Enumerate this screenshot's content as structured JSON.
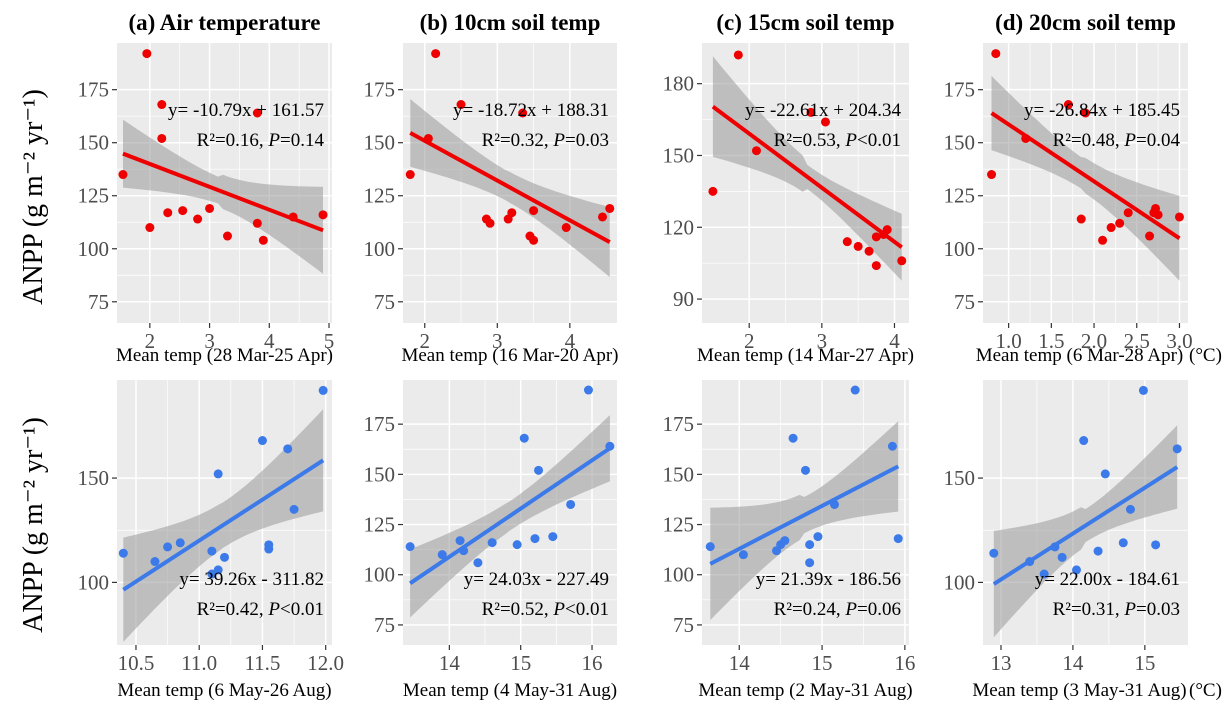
{
  "y_axis_label": "ANPP (g m⁻² yr⁻¹)",
  "unit_suffix": "(°C)",
  "colors": {
    "spring": "#ee0000",
    "summer": "#3b7ae8",
    "panel_bg": "#ebebeb",
    "grid": "#ffffff",
    "band": "#999999"
  },
  "chart_data": [
    {
      "type": "scatter",
      "title": "(a) Air temperature",
      "xlabel": "Mean temp (28 Mar-25 Apr)",
      "season": "spring",
      "xlim": [
        1.45,
        5.05
      ],
      "ylim": [
        65,
        197
      ],
      "xticks": [
        2,
        3,
        4,
        5
      ],
      "xtick_labels": [
        "2",
        "3",
        "4",
        "5"
      ],
      "yticks": [
        75,
        100,
        125,
        150,
        175
      ],
      "points": [
        [
          1.55,
          135
        ],
        [
          1.95,
          192
        ],
        [
          2.0,
          110
        ],
        [
          2.2,
          152
        ],
        [
          2.2,
          168
        ],
        [
          2.3,
          117
        ],
        [
          2.55,
          118
        ],
        [
          2.8,
          114
        ],
        [
          3.0,
          119
        ],
        [
          3.3,
          106
        ],
        [
          3.8,
          164
        ],
        [
          3.8,
          112
        ],
        [
          3.9,
          104
        ],
        [
          4.4,
          115
        ],
        [
          4.9,
          116
        ]
      ],
      "fit": {
        "slope": -10.79,
        "intercept": 161.57,
        "x_range": [
          1.55,
          4.9
        ]
      },
      "band": {
        "upper": [
          161,
          130
        ],
        "lower": [
          129,
          89
        ]
      },
      "equation": "y= -10.79x + 161.57",
      "r2_label": "R²=0.16, ",
      "p_italic": "P",
      "p_value": "=0.14"
    },
    {
      "type": "scatter",
      "title": "(b) 10cm soil temp",
      "xlabel": "Mean temp (16 Mar-20 Apr)",
      "season": "spring",
      "xlim": [
        1.7,
        4.65
      ],
      "ylim": [
        65,
        197
      ],
      "xticks": [
        2,
        3,
        4
      ],
      "xtick_labels": [
        "2",
        "3",
        "4"
      ],
      "yticks": [
        75,
        100,
        125,
        150,
        175
      ],
      "points": [
        [
          1.8,
          135
        ],
        [
          2.05,
          152
        ],
        [
          2.15,
          192
        ],
        [
          2.5,
          168
        ],
        [
          2.85,
          114
        ],
        [
          2.9,
          112
        ],
        [
          3.15,
          114
        ],
        [
          3.2,
          117
        ],
        [
          3.35,
          164
        ],
        [
          3.45,
          106
        ],
        [
          3.5,
          104
        ],
        [
          3.5,
          118
        ],
        [
          3.95,
          110
        ],
        [
          4.45,
          115
        ],
        [
          4.55,
          119
        ]
      ],
      "fit": {
        "slope": -18.72,
        "intercept": 188.31,
        "x_range": [
          1.8,
          4.55
        ]
      },
      "band": {
        "upper": [
          170,
          120
        ],
        "lower": [
          138,
          87
        ]
      },
      "equation": "y= -18.72x + 188.31",
      "r2_label": "R²=0.32, ",
      "p_italic": "P",
      "p_value": "=0.03"
    },
    {
      "type": "scatter",
      "title": "(c) 15cm soil temp",
      "xlabel": "Mean temp (14 Mar-27 Apr)",
      "season": "spring",
      "xlim": [
        1.35,
        4.2
      ],
      "ylim": [
        80,
        197
      ],
      "xticks": [
        2,
        3,
        4
      ],
      "xtick_labels": [
        "2",
        "3",
        "4"
      ],
      "yticks": [
        90,
        120,
        150,
        180
      ],
      "points": [
        [
          1.5,
          135
        ],
        [
          1.85,
          192
        ],
        [
          2.1,
          152
        ],
        [
          2.85,
          168
        ],
        [
          3.05,
          164
        ],
        [
          3.35,
          114
        ],
        [
          3.5,
          112
        ],
        [
          3.65,
          110
        ],
        [
          3.75,
          104
        ],
        [
          3.75,
          116
        ],
        [
          3.85,
          117
        ],
        [
          3.9,
          119
        ],
        [
          4.1,
          106
        ]
      ],
      "fit": {
        "slope": -22.61,
        "intercept": 204.34,
        "x_range": [
          1.5,
          4.1
        ]
      },
      "band": {
        "upper": [
          192,
          122
        ],
        "lower": [
          150,
          94
        ]
      },
      "equation": "y= -22.61x + 204.34",
      "r2_label": "R²=0.53, ",
      "p_italic": "P",
      "p_value": "<0.01"
    },
    {
      "type": "scatter",
      "title": "(d) 20cm soil temp",
      "xlabel": "Mean temp (6 Mar-28 Apr)",
      "season": "spring",
      "xlim": [
        0.7,
        3.1
      ],
      "ylim": [
        65,
        197
      ],
      "xticks": [
        1.0,
        1.5,
        2.0,
        2.5,
        3.0
      ],
      "xtick_labels": [
        "1.0",
        "1.5",
        "2.0",
        "2.5",
        "3.0"
      ],
      "yticks": [
        75,
        100,
        125,
        150,
        175
      ],
      "points": [
        [
          0.8,
          135
        ],
        [
          0.85,
          192
        ],
        [
          1.2,
          152
        ],
        [
          1.7,
          168
        ],
        [
          1.85,
          114
        ],
        [
          1.9,
          164
        ],
        [
          2.1,
          104
        ],
        [
          2.2,
          110
        ],
        [
          2.3,
          112
        ],
        [
          2.4,
          117
        ],
        [
          2.65,
          106
        ],
        [
          2.7,
          117
        ],
        [
          2.72,
          119
        ],
        [
          2.75,
          116
        ],
        [
          3.0,
          115
        ]
      ],
      "fit": {
        "slope": -26.84,
        "intercept": 185.45,
        "x_range": [
          0.8,
          3.0
        ]
      },
      "band": {
        "upper": [
          181,
          124
        ],
        "lower": [
          146,
          84
        ]
      },
      "equation": "y= -26.84x + 185.45",
      "r2_label": "R²=0.48, ",
      "p_italic": "P",
      "p_value": "=0.04"
    },
    {
      "type": "scatter",
      "title": "",
      "xlabel": "Mean temp (6 May-26 Aug)",
      "season": "summer",
      "xlim": [
        10.35,
        12.05
      ],
      "ylim": [
        70,
        197
      ],
      "xticks": [
        10.5,
        11.0,
        11.5,
        12.0
      ],
      "xtick_labels": [
        "10.5",
        "11.0",
        "11.5",
        "12.0"
      ],
      "yticks": [
        100,
        150
      ],
      "points": [
        [
          10.4,
          114
        ],
        [
          10.65,
          110
        ],
        [
          10.75,
          117
        ],
        [
          10.85,
          119
        ],
        [
          11.1,
          104
        ],
        [
          11.1,
          115
        ],
        [
          11.15,
          106
        ],
        [
          11.15,
          152
        ],
        [
          11.2,
          112
        ],
        [
          11.5,
          168
        ],
        [
          11.55,
          116
        ],
        [
          11.55,
          118
        ],
        [
          11.7,
          164
        ],
        [
          11.75,
          135
        ],
        [
          11.98,
          192
        ]
      ],
      "fit": {
        "slope": 39.26,
        "intercept": -311.82,
        "x_range": [
          10.4,
          11.98
        ]
      },
      "band": {
        "upper": [
          122,
          182
        ],
        "lower": [
          72,
          133
        ]
      },
      "equation": "y= 39.26x - 311.82",
      "r2_label": "R²=0.42, ",
      "p_italic": "P",
      "p_value": "<0.01"
    },
    {
      "type": "scatter",
      "title": "",
      "xlabel": "Mean temp (4 May-31 Aug)",
      "season": "summer",
      "xlim": [
        13.35,
        16.35
      ],
      "ylim": [
        65,
        197
      ],
      "xticks": [
        14,
        15,
        16
      ],
      "xtick_labels": [
        "14",
        "15",
        "16"
      ],
      "yticks": [
        75,
        100,
        125,
        150,
        175
      ],
      "points": [
        [
          13.45,
          114
        ],
        [
          13.9,
          110
        ],
        [
          14.15,
          117
        ],
        [
          14.2,
          112
        ],
        [
          14.4,
          106
        ],
        [
          14.6,
          116
        ],
        [
          14.95,
          115
        ],
        [
          15.05,
          168
        ],
        [
          15.2,
          118
        ],
        [
          15.25,
          152
        ],
        [
          15.45,
          119
        ],
        [
          15.7,
          135
        ],
        [
          15.95,
          192
        ],
        [
          16.25,
          164
        ]
      ],
      "fit": {
        "slope": 24.03,
        "intercept": -227.49,
        "x_range": [
          13.45,
          16.25
        ]
      },
      "band": {
        "upper": [
          113,
          181
        ],
        "lower": [
          79,
          148
        ]
      },
      "equation": "y= 24.03x - 227.49",
      "r2_label": "R²=0.52, ",
      "p_italic": "P",
      "p_value": "<0.01"
    },
    {
      "type": "scatter",
      "title": "",
      "xlabel": "Mean temp (2 May-31 Aug)",
      "season": "summer",
      "xlim": [
        13.55,
        16.05
      ],
      "ylim": [
        65,
        197
      ],
      "xticks": [
        14,
        15,
        16
      ],
      "xtick_labels": [
        "14",
        "15",
        "16"
      ],
      "yticks": [
        75,
        100,
        125,
        150,
        175
      ],
      "points": [
        [
          13.65,
          114
        ],
        [
          14.05,
          110
        ],
        [
          14.45,
          112
        ],
        [
          14.5,
          115
        ],
        [
          14.55,
          117
        ],
        [
          14.65,
          168
        ],
        [
          14.8,
          152
        ],
        [
          14.85,
          106
        ],
        [
          14.85,
          115
        ],
        [
          14.95,
          119
        ],
        [
          15.15,
          135
        ],
        [
          15.4,
          192
        ],
        [
          15.85,
          164
        ],
        [
          15.92,
          118
        ]
      ],
      "fit": {
        "slope": 21.39,
        "intercept": -186.56,
        "x_range": [
          13.65,
          15.92
        ]
      },
      "band": {
        "upper": [
          134,
          176
        ],
        "lower": [
          78,
          131
        ]
      },
      "equation": "y= 21.39x - 186.56",
      "r2_label": "R²=0.24, ",
      "p_italic": "P",
      "p_value": "=0.06"
    },
    {
      "type": "scatter",
      "title": "",
      "xlabel": "Mean temp (3 May-31 Aug)",
      "season": "summer",
      "xlim": [
        12.75,
        15.6
      ],
      "ylim": [
        70,
        197
      ],
      "xticks": [
        13,
        14,
        15
      ],
      "xtick_labels": [
        "13",
        "14",
        "15"
      ],
      "yticks": [
        100,
        150
      ],
      "points": [
        [
          12.9,
          114
        ],
        [
          13.4,
          110
        ],
        [
          13.6,
          104
        ],
        [
          13.75,
          117
        ],
        [
          13.85,
          112
        ],
        [
          14.05,
          106
        ],
        [
          14.15,
          168
        ],
        [
          14.35,
          115
        ],
        [
          14.45,
          152
        ],
        [
          14.7,
          119
        ],
        [
          14.8,
          135
        ],
        [
          14.98,
          192
        ],
        [
          15.15,
          118
        ],
        [
          15.45,
          164
        ]
      ],
      "fit": {
        "slope": 22.0,
        "intercept": -184.61,
        "x_range": [
          12.9,
          15.45
        ]
      },
      "band": {
        "upper": [
          125,
          176
        ],
        "lower": [
          74,
          136
        ]
      },
      "equation": "y= 22.00x - 184.61",
      "r2_label": "R²=0.31, ",
      "p_italic": "P",
      "p_value": "=0.03"
    }
  ]
}
